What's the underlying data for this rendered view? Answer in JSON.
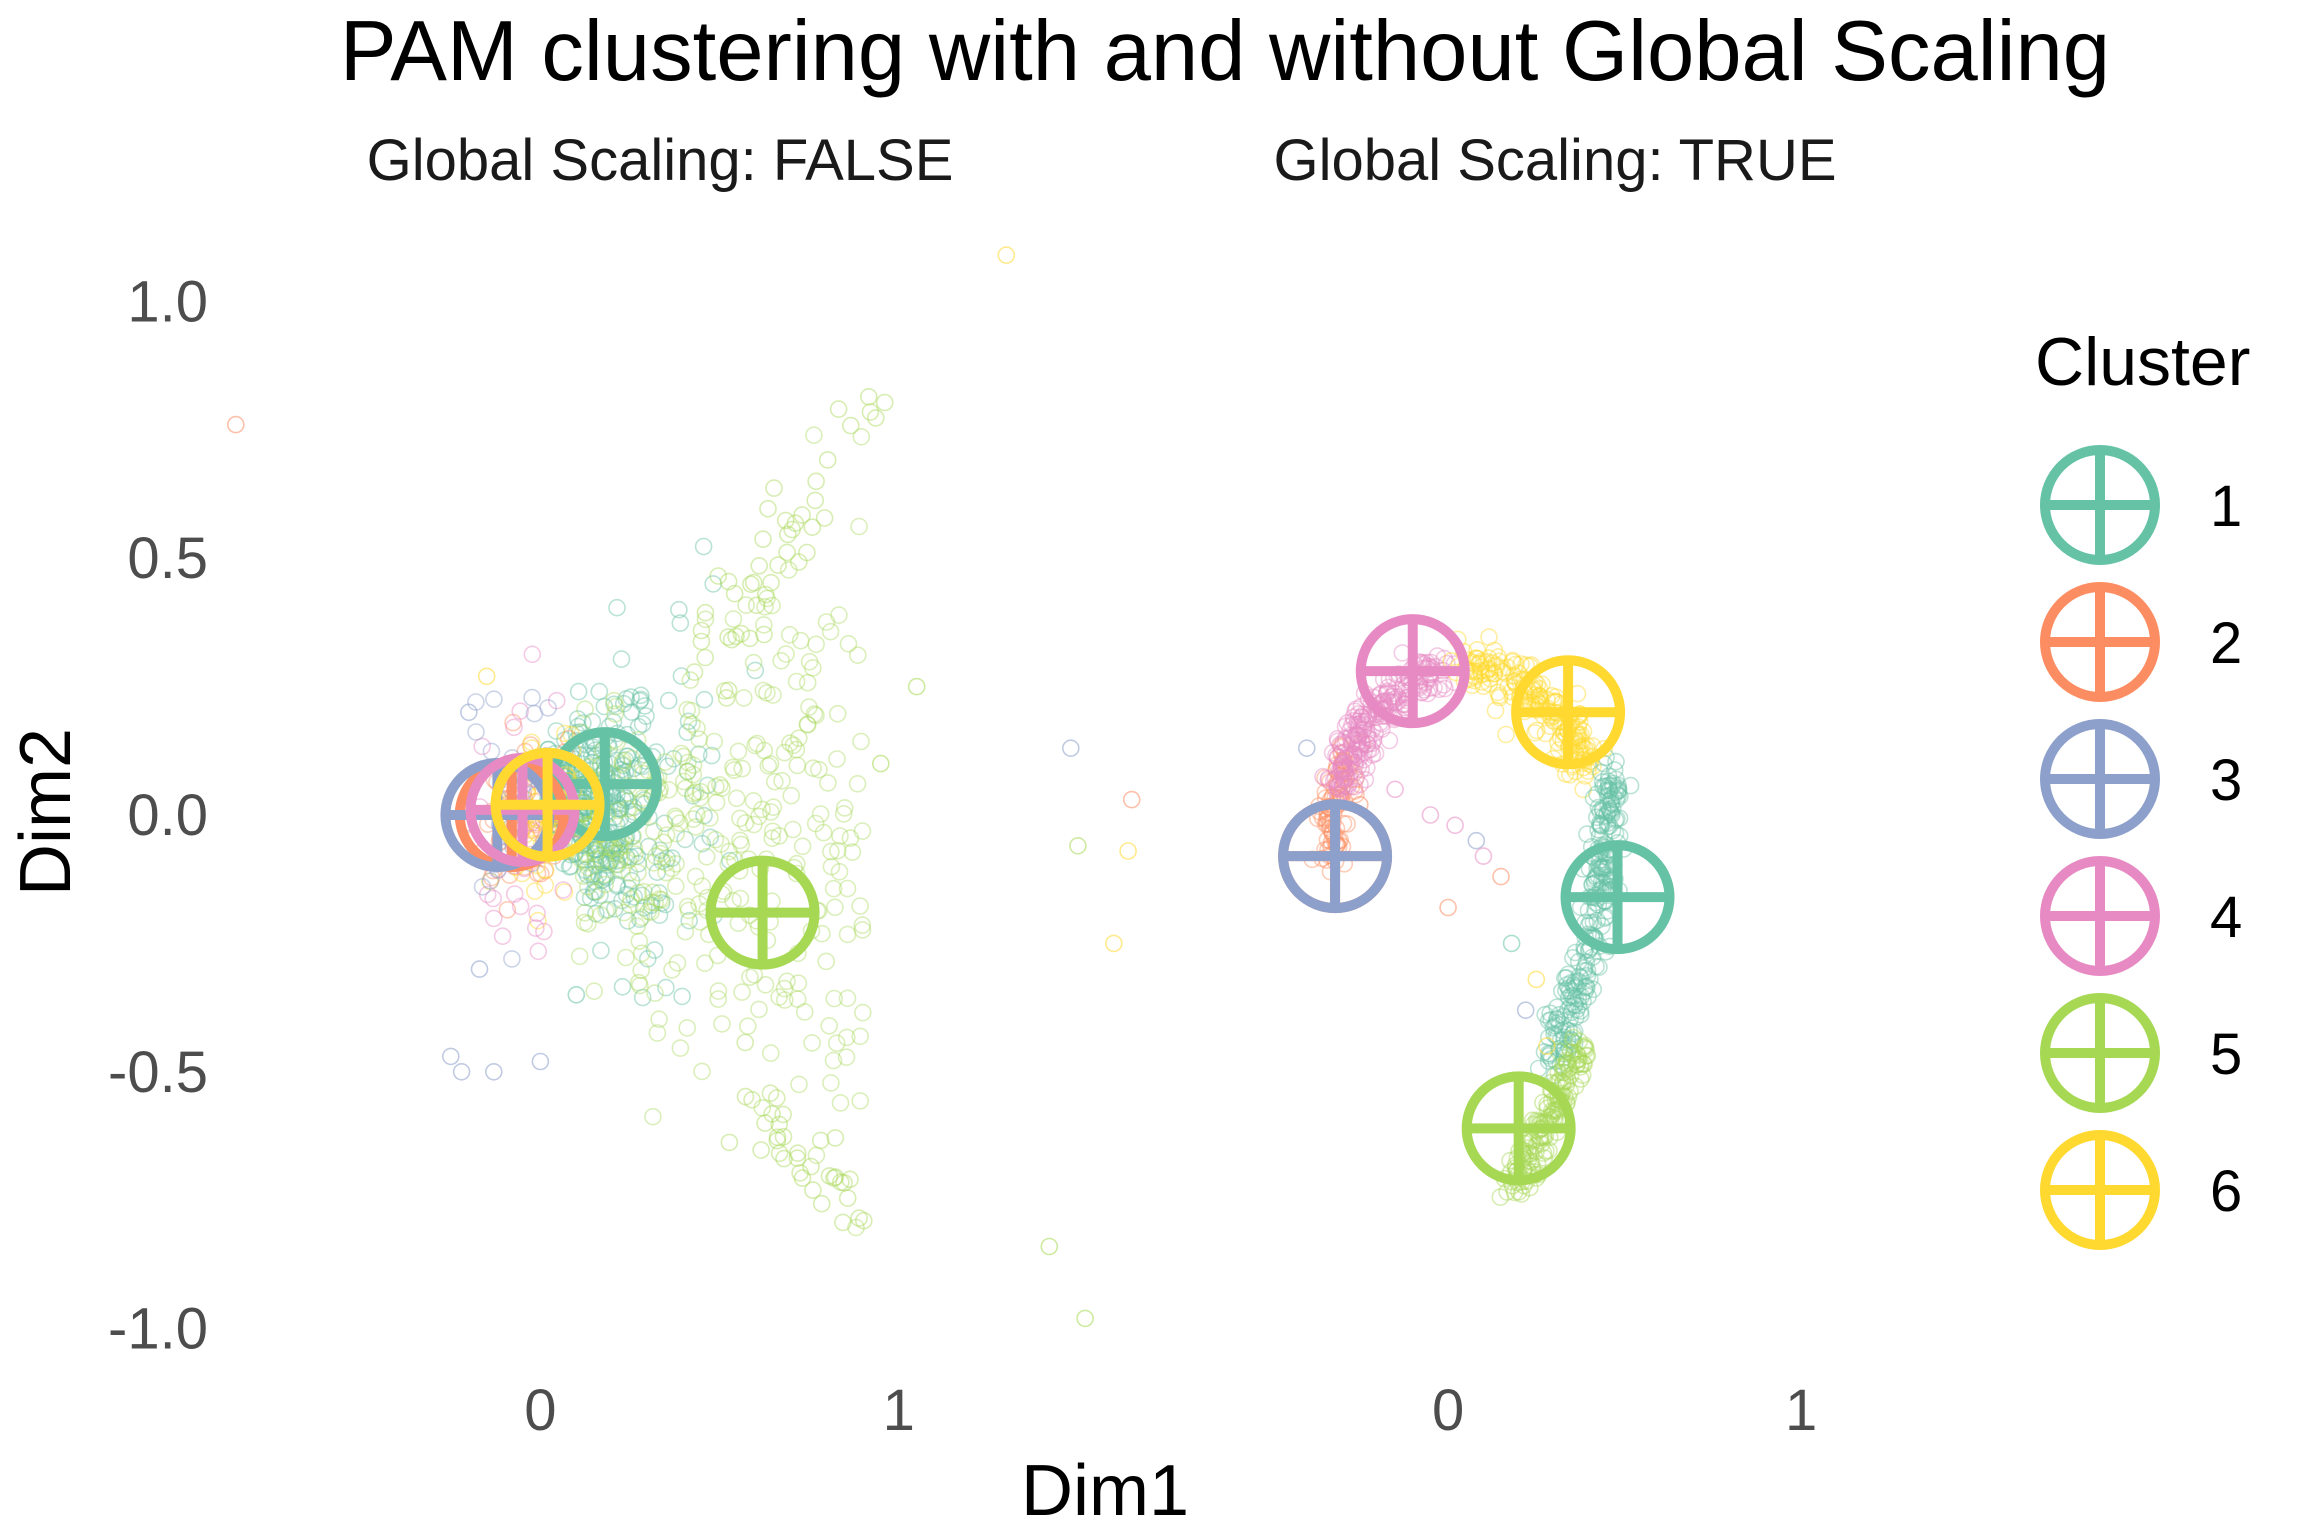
{
  "chart_data": {
    "type": "scatter",
    "title": "PAM clustering with and without Global Scaling",
    "xlabel": "Dim1",
    "ylabel": "Dim2",
    "y_ticks": [
      "1.0",
      "0.5",
      "0.0",
      "-0.5",
      "-1.0"
    ],
    "y_tick_values": [
      1.0,
      0.5,
      0.0,
      -0.5,
      -1.0
    ],
    "x_ticks": [
      "0",
      "1"
    ],
    "x_tick_values": [
      0,
      1
    ],
    "grid": false,
    "legend": {
      "title": "Cluster",
      "position": "right",
      "entries": [
        {
          "label": "1",
          "color": "#66C2A5"
        },
        {
          "label": "2",
          "color": "#FC8D62"
        },
        {
          "label": "3",
          "color": "#8DA0CB"
        },
        {
          "label": "4",
          "color": "#E78AC3"
        },
        {
          "label": "5",
          "color": "#A6D854"
        },
        {
          "label": "6",
          "color": "#FFD92F"
        }
      ]
    },
    "facets": [
      {
        "label": "Global Scaling: FALSE",
        "xlim": [
          -0.95,
          1.45
        ],
        "ylim": [
          -1.1,
          1.1
        ],
        "medoids": [
          {
            "cluster": "1",
            "x": 0.18,
            "y": 0.06
          },
          {
            "cluster": "2",
            "x": -0.08,
            "y": 0.0
          },
          {
            "cluster": "3",
            "x": -0.12,
            "y": 0.0
          },
          {
            "cluster": "4",
            "x": -0.05,
            "y": 0.01
          },
          {
            "cluster": "5",
            "x": 0.62,
            "y": -0.19
          },
          {
            "cluster": "6",
            "x": 0.02,
            "y": 0.02
          }
        ]
      },
      {
        "label": "Global Scaling: TRUE",
        "xlim": [
          -1.0,
          1.45
        ],
        "ylim": [
          -1.1,
          1.1
        ],
        "medoids": [
          {
            "cluster": "1",
            "x": 0.48,
            "y": -0.16
          },
          {
            "cluster": "2",
            "x": -0.32,
            "y": -0.08
          },
          {
            "cluster": "3",
            "x": -0.32,
            "y": -0.08
          },
          {
            "cluster": "4",
            "x": -0.1,
            "y": 0.28
          },
          {
            "cluster": "5",
            "x": 0.2,
            "y": -0.61
          },
          {
            "cluster": "6",
            "x": 0.34,
            "y": 0.2
          }
        ]
      }
    ]
  }
}
